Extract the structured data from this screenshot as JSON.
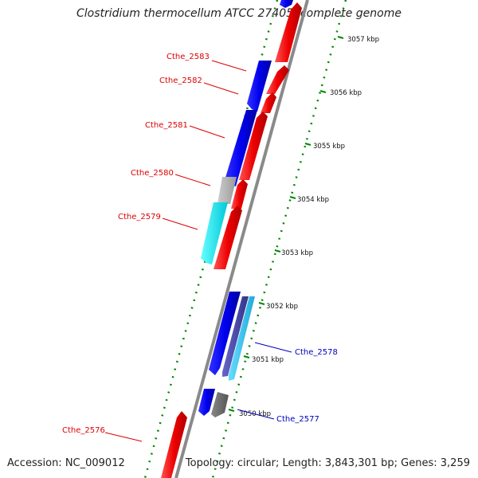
{
  "header": {
    "title": "Clostridium thermocellum ATCC 27405, complete genome"
  },
  "footer": {
    "accession": "Accession: NC_009012",
    "summary": "Topology: circular; Length: 3,843,301 bp; Genes: 3,259"
  },
  "scale": {
    "ticks": [
      {
        "label": "3057 kbp",
        "kbp": 3057
      },
      {
        "label": "3056 kbp",
        "kbp": 3056
      },
      {
        "label": "3055 kbp",
        "kbp": 3055
      },
      {
        "label": "3054 kbp",
        "kbp": 3054
      },
      {
        "label": "3053 kbp",
        "kbp": 3053
      },
      {
        "label": "3052 kbp",
        "kbp": 3052
      },
      {
        "label": "3051 kbp",
        "kbp": 3051
      },
      {
        "label": "3050 kbp",
        "kbp": 3050
      }
    ]
  },
  "gene_labels": [
    {
      "label": "Cthe_2583",
      "color": "#dd0000"
    },
    {
      "label": "Cthe_2582",
      "color": "#dd0000"
    },
    {
      "label": "Cthe_2581",
      "color": "#dd0000"
    },
    {
      "label": "Cthe_2580",
      "color": "#dd0000"
    },
    {
      "label": "Cthe_2579",
      "color": "#dd0000"
    },
    {
      "label": "Cthe_2576",
      "color": "#dd0000"
    },
    {
      "label": "Cthe_2578",
      "color": "#0000bb"
    },
    {
      "label": "Cthe_2577",
      "color": "#0000bb"
    }
  ],
  "colors": {
    "forward_cds": "#ee0000",
    "reverse_cds": "#0000ee",
    "cyan_cds": "#00e5ee",
    "light_blue_cds": "#33ccee",
    "slate_cds": "#4444aa",
    "gray_cds": "#aaaaaa",
    "dark_gray_cds": "#666666",
    "backbone": "#8a8a8a",
    "gc_dots": "#008800"
  }
}
